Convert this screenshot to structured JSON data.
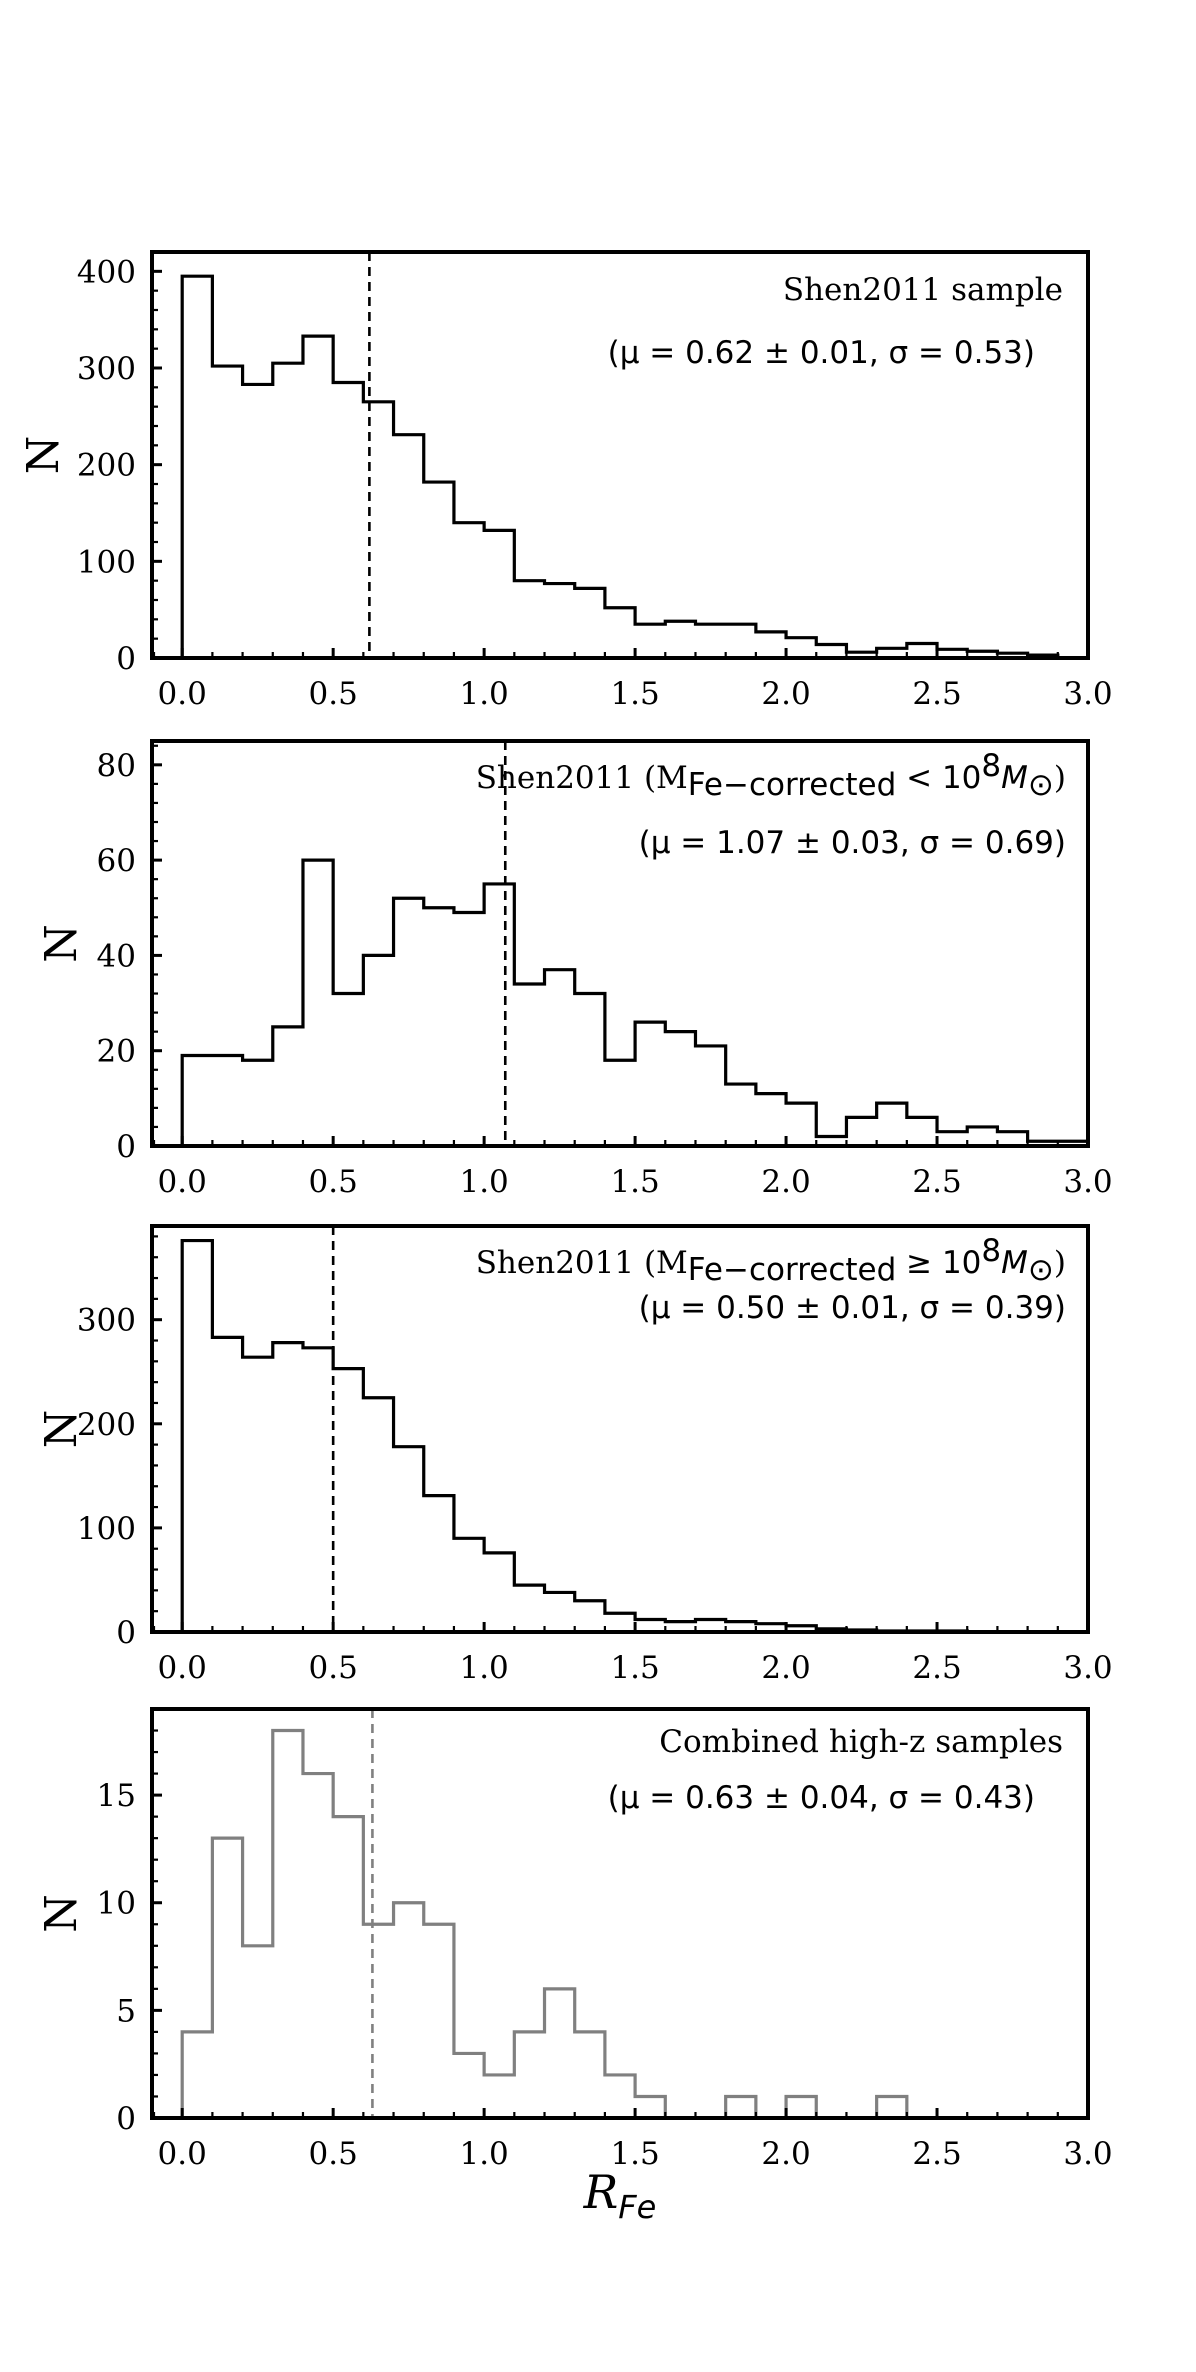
{
  "chart_data": [
    {
      "type": "histogram",
      "xlim": [
        -0.1,
        3.0
      ],
      "ylim": [
        0,
        420
      ],
      "xticks": [
        "0.0",
        "0.5",
        "1.0",
        "1.5",
        "2.0",
        "2.5",
        "3.0"
      ],
      "yticks": [
        "0",
        "100",
        "200",
        "300",
        "400"
      ],
      "ylabel": "N",
      "bin_edges": [
        0.0,
        0.1,
        0.2,
        0.3,
        0.4,
        0.5,
        0.6,
        0.7,
        0.8,
        0.9,
        1.0,
        1.1,
        1.2,
        1.3,
        1.4,
        1.5,
        1.6,
        1.7,
        1.8,
        1.9,
        2.0,
        2.1,
        2.2,
        2.3,
        2.4,
        2.5,
        2.6,
        2.7,
        2.8,
        2.9,
        3.0
      ],
      "counts": [
        395,
        302,
        283,
        305,
        333,
        285,
        265,
        231,
        182,
        140,
        132,
        80,
        77,
        72,
        52,
        35,
        38,
        35,
        35,
        27,
        21,
        14,
        6,
        10,
        15,
        9,
        7,
        5,
        3,
        0
      ],
      "color": "#000000",
      "mean_line": 0.62,
      "annotation": "Shen2011 sample",
      "stats": "(μ = 0.62 ± 0.01, σ = 0.53)"
    },
    {
      "type": "histogram",
      "xlim": [
        -0.1,
        3.0
      ],
      "ylim": [
        0,
        85
      ],
      "xticks": [
        "0.0",
        "0.5",
        "1.0",
        "1.5",
        "2.0",
        "2.5",
        "3.0"
      ],
      "yticks": [
        "0",
        "20",
        "40",
        "60",
        "80"
      ],
      "ylabel": "N",
      "bin_edges": [
        0.0,
        0.1,
        0.2,
        0.3,
        0.4,
        0.5,
        0.6,
        0.7,
        0.8,
        0.9,
        1.0,
        1.1,
        1.2,
        1.3,
        1.4,
        1.5,
        1.6,
        1.7,
        1.8,
        1.9,
        2.0,
        2.1,
        2.2,
        2.3,
        2.4,
        2.5,
        2.6,
        2.7,
        2.8,
        2.9,
        3.0
      ],
      "counts": [
        19,
        19,
        18,
        25,
        60,
        32,
        40,
        52,
        50,
        49,
        55,
        34,
        37,
        32,
        18,
        26,
        24,
        21,
        13,
        11,
        9,
        2,
        6,
        9,
        6,
        3,
        4,
        3,
        1,
        1
      ],
      "color": "#000000",
      "mean_line": 1.07,
      "annotation": "Shen2011 (M",
      "annotation_sub": "Fe−corrected",
      "annotation_rel": " < 10",
      "annotation_sup": "8",
      "annotation_m": "M",
      "annotation_sun": "⊙",
      "annotation_close": ")",
      "stats": "(μ = 1.07 ± 0.03, σ = 0.69)"
    },
    {
      "type": "histogram",
      "xlim": [
        -0.1,
        3.0
      ],
      "ylim": [
        0,
        390
      ],
      "xticks": [
        "0.0",
        "0.5",
        "1.0",
        "1.5",
        "2.0",
        "2.5",
        "3.0"
      ],
      "yticks": [
        "0",
        "100",
        "200",
        "300"
      ],
      "ylabel": "N",
      "bin_edges": [
        0.0,
        0.1,
        0.2,
        0.3,
        0.4,
        0.5,
        0.6,
        0.7,
        0.8,
        0.9,
        1.0,
        1.1,
        1.2,
        1.3,
        1.4,
        1.5,
        1.6,
        1.7,
        1.8,
        1.9,
        2.0,
        2.1,
        2.2,
        2.3,
        2.4,
        2.5,
        2.6,
        2.7,
        2.8,
        2.9,
        3.0
      ],
      "counts": [
        376,
        283,
        264,
        278,
        273,
        253,
        225,
        178,
        131,
        90,
        76,
        45,
        38,
        30,
        18,
        12,
        10,
        12,
        10,
        8,
        6,
        3,
        2,
        1,
        1,
        1,
        0,
        0,
        0,
        0
      ],
      "color": "#000000",
      "mean_line": 0.5,
      "annotation": "Shen2011 (M",
      "annotation_sub": "Fe−corrected",
      "annotation_rel": " ≥ 10",
      "annotation_sup": "8",
      "annotation_m": "M",
      "annotation_sun": "⊙",
      "annotation_close": ")",
      "stats": "(μ = 0.50 ± 0.01, σ = 0.39)"
    },
    {
      "type": "histogram",
      "xlim": [
        -0.1,
        3.0
      ],
      "ylim": [
        0,
        19
      ],
      "xticks": [
        "0.0",
        "0.5",
        "1.0",
        "1.5",
        "2.0",
        "2.5",
        "3.0"
      ],
      "yticks": [
        "0",
        "5",
        "10",
        "15"
      ],
      "ylabel": "N",
      "xlabel": "R",
      "xlabel_sub": "Fe",
      "bin_edges": [
        0.0,
        0.1,
        0.2,
        0.3,
        0.4,
        0.5,
        0.6,
        0.7,
        0.8,
        0.9,
        1.0,
        1.1,
        1.2,
        1.3,
        1.4,
        1.5,
        1.6,
        1.7,
        1.8,
        1.9,
        2.0,
        2.1,
        2.2,
        2.3,
        2.4
      ],
      "counts": [
        4,
        13,
        8,
        18,
        16,
        14,
        9,
        10,
        9,
        3,
        2,
        4,
        6,
        4,
        2,
        1,
        0,
        0,
        1,
        0,
        1,
        0,
        0,
        1
      ],
      "color": "#808080",
      "mean_line": 0.63,
      "annotation": "Combined high-z samples",
      "stats": "(μ = 0.63 ± 0.04, σ = 0.43)"
    }
  ]
}
